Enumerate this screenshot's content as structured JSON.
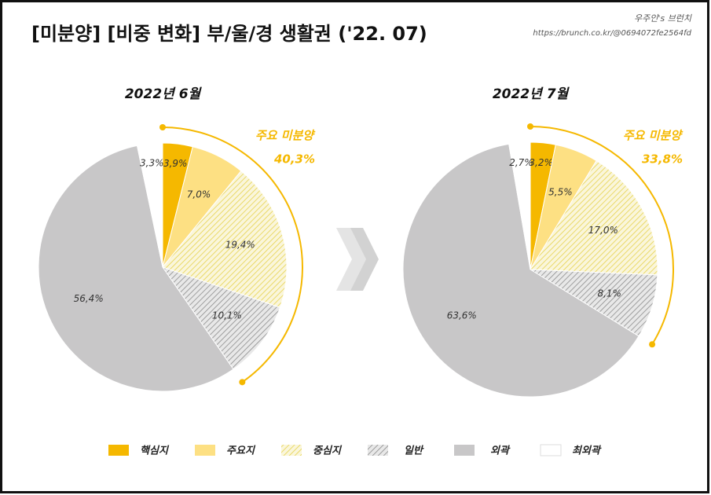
{
  "title": "[미분양] [비중 변화] 부/울/경 생활권 ('22. 07)",
  "watermark": {
    "author": "우주인's 브런치",
    "url": "https://brunch.co.kr/@0694072fe2564fd"
  },
  "legend": {
    "labels": [
      "핵심지",
      "주요지",
      "중심지",
      "일반",
      "외곽",
      "최외곽"
    ],
    "colors": [
      "#f5b800",
      "#fde083",
      "#e6d24c",
      "#8c8c8c",
      "#c8c7c8",
      "#ffffff"
    ],
    "hatched": [
      false,
      false,
      true,
      true,
      false,
      false
    ]
  },
  "chart_data": [
    {
      "type": "pie",
      "title": "2022년 6월",
      "values": [
        3.9,
        7.0,
        19.4,
        10.1,
        56.4,
        3.3
      ],
      "value_labels": [
        "3,9%",
        "7,0%",
        "19,4%",
        "10,1%",
        "56,4%",
        "3,3%"
      ],
      "annotation": {
        "label": "주요 미분양",
        "value": "40,3%"
      }
    },
    {
      "type": "pie",
      "title": "2022년 7월",
      "values": [
        3.2,
        5.5,
        17.0,
        8.1,
        63.6,
        2.7
      ],
      "value_labels": [
        "3,2%",
        "5,5%",
        "17,0%",
        "8,1%",
        "63,6%",
        "2,7%"
      ],
      "annotation": {
        "label": "주요 미분양",
        "value": "33,8%"
      }
    }
  ]
}
